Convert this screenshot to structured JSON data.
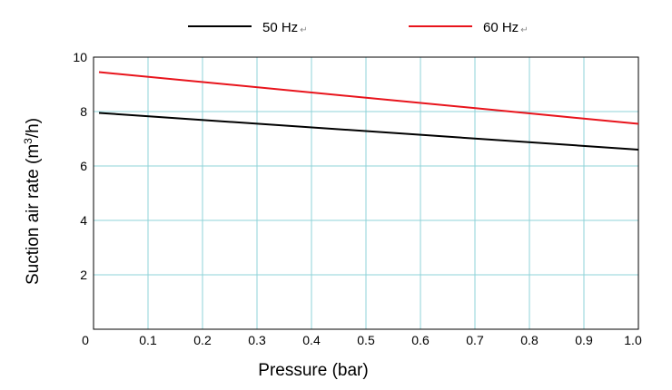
{
  "chart_data": {
    "type": "line",
    "xlabel": "Pressure (bar)",
    "ylabel": {
      "prefix": "Suction air rate (m",
      "sup": "3",
      "suffix": "/h)"
    },
    "xlim": [
      0,
      1.0
    ],
    "ylim": [
      0,
      10
    ],
    "x_ticks": [
      "0",
      "0.1",
      "0.2",
      "0.3",
      "0.4",
      "0.5",
      "0.6",
      "0.7",
      "0.8",
      "0.9",
      "1.0"
    ],
    "y_ticks": [
      "2",
      "4",
      "6",
      "8",
      "10"
    ],
    "grid": true,
    "grid_color": "#8fd3d9",
    "legend_position": "top",
    "series": [
      {
        "name": "50 Hz",
        "color": "#000000",
        "x": [
          0.01,
          1.0
        ],
        "y": [
          7.95,
          6.6
        ]
      },
      {
        "name": "60 Hz",
        "color": "#e8141c",
        "x": [
          0.01,
          1.0
        ],
        "y": [
          9.45,
          7.55
        ]
      }
    ]
  }
}
